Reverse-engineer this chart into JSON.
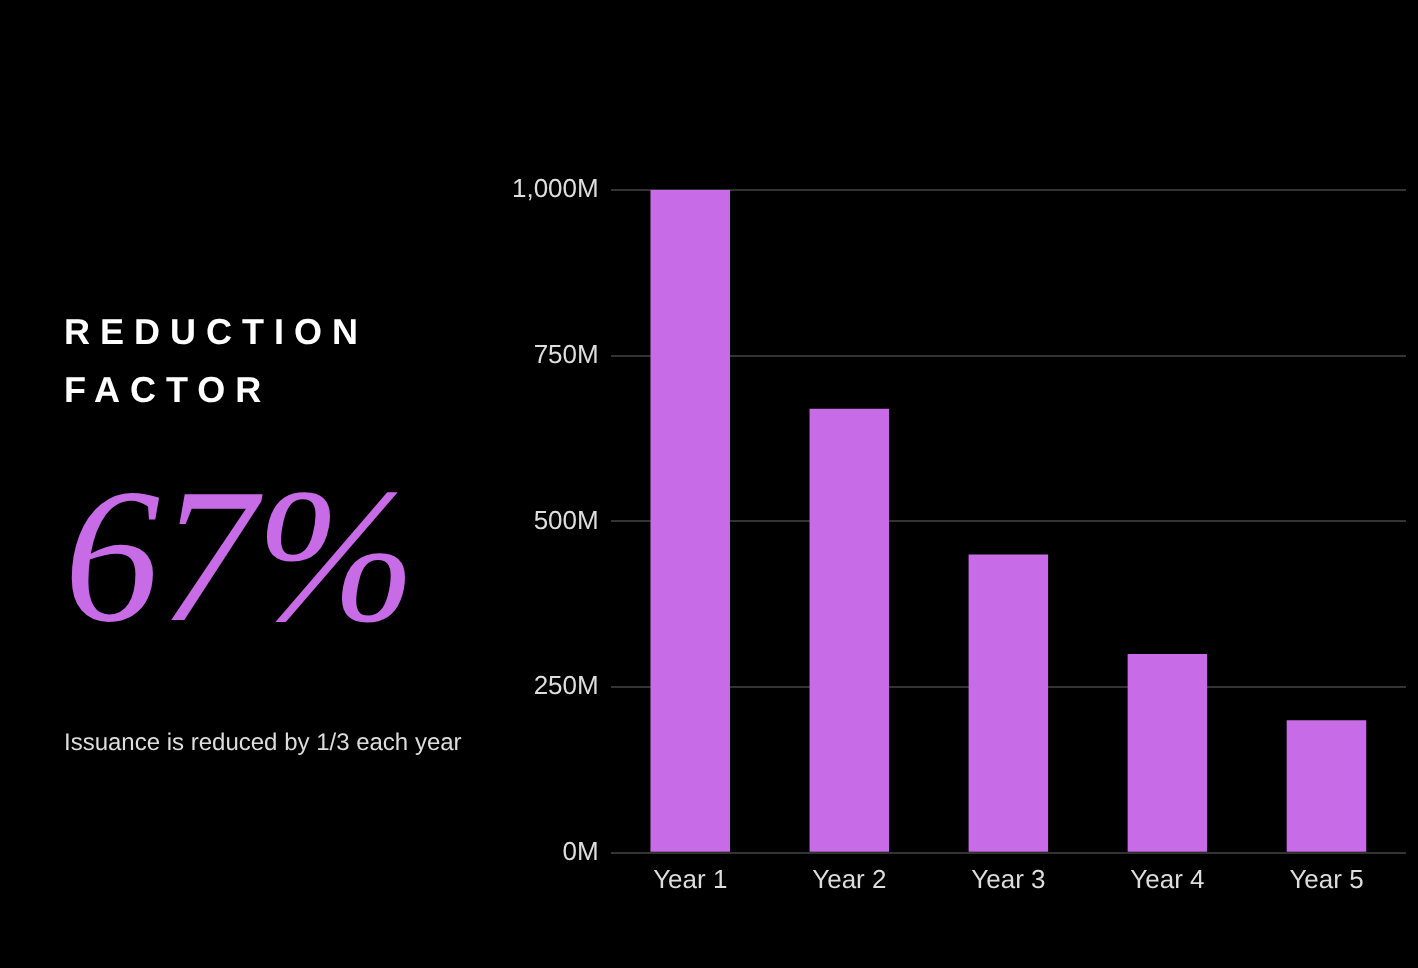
{
  "chart_data": {
    "type": "bar",
    "title": "REDUCTION FACTOR",
    "annotations": [
      "67%",
      "Issuance is reduced by 1/3 each year"
    ],
    "categories": [
      "Year 1",
      "Year 2",
      "Year 3",
      "Year 4",
      "Year 5"
    ],
    "values": [
      1000,
      670,
      450,
      300,
      200
    ],
    "color": "#c86be6",
    "ylim": [
      0,
      1000
    ],
    "yticks": [
      {
        "value": 0,
        "label": "0M"
      },
      {
        "value": 250,
        "label": "250M"
      },
      {
        "value": 500,
        "label": "500M"
      },
      {
        "value": 750,
        "label": "750M"
      },
      {
        "value": 1000,
        "label": "1,000M"
      }
    ],
    "grid": "y",
    "legend": false
  }
}
